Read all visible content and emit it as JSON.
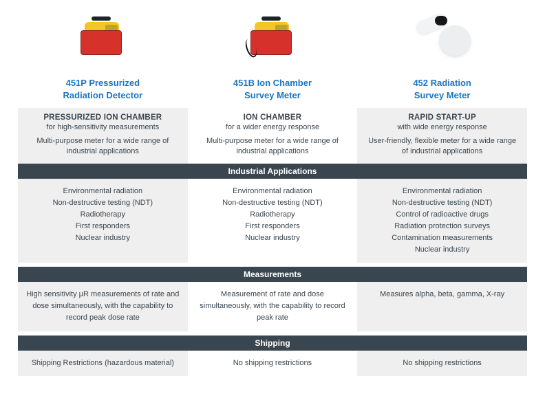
{
  "colors": {
    "link": "#1976c5",
    "text": "#3a464f",
    "header_bg": "#3a464f",
    "header_text": "#ffffff",
    "shaded_bg": "#efefef",
    "plain_bg": "#ffffff"
  },
  "products": [
    {
      "title_line1": "451P Pressurized",
      "title_line2": "Radiation Detector",
      "feature_title": "PRESSURIZED ION CHAMBER",
      "feature_sub": "for high-sensitivity measurements",
      "feature_desc": "Multi-purpose meter for a wide range of industrial applications",
      "apps": [
        "Environmental radiation",
        "Non-destructive testing (NDT)",
        "Radiotherapy",
        "First responders",
        "Nuclear industry"
      ],
      "measurements": "High sensitivity µR measurements of rate and dose simultaneously, with the capability to record peak dose rate",
      "shipping": "Shipping Restrictions (hazardous material)"
    },
    {
      "title_line1": "451B Ion Chamber",
      "title_line2": "Survey Meter",
      "feature_title": "ION CHAMBER",
      "feature_sub": "for a wider energy response",
      "feature_desc": "Multi-purpose meter for a wide range of industrial applications",
      "apps": [
        "Environmental radiation",
        "Non-destructive testing (NDT)",
        "Radiotherapy",
        "First responders",
        "Nuclear industry"
      ],
      "measurements": "Measurement of rate and dose simultaneously, with the capability to record peak rate",
      "shipping": "No shipping restrictions"
    },
    {
      "title_line1": "452 Radiation",
      "title_line2": "Survey Meter",
      "feature_title": "RAPID START-UP",
      "feature_sub": "with wide energy response",
      "feature_desc": "User-friendly, flexible meter for a wide range of industrial applications",
      "apps": [
        "Environmental radiation",
        "Non-destructive testing (NDT)",
        "Control of radioactive drugs",
        "Radiation protection surveys",
        "Contamination measurements",
        "Nuclear industry"
      ],
      "measurements": "Measures alpha, beta, gamma, X-ray",
      "shipping": "No shipping restrictions"
    }
  ],
  "sections": {
    "industrial": "Industrial Applications",
    "measurements": "Measurements",
    "shipping": "Shipping"
  }
}
